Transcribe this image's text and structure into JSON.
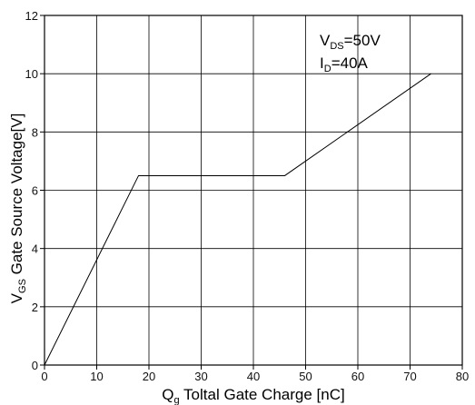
{
  "chart_data": {
    "type": "line",
    "xlabel": {
      "main": "Q",
      "sub": "g",
      "rest": " Toltal Gate Charge [nC]"
    },
    "ylabel": {
      "main": "V",
      "sub": "GS",
      "rest": " Gate Source Voltage[V]"
    },
    "xlim": [
      0,
      80
    ],
    "ylim": [
      0,
      12
    ],
    "x_ticks": [
      0,
      10,
      20,
      30,
      40,
      50,
      60,
      70,
      80
    ],
    "y_ticks": [
      0,
      2,
      4,
      6,
      8,
      10,
      12
    ],
    "grid": true,
    "annotations": [
      {
        "main": "V",
        "sub": "DS",
        "rest": "=50V"
      },
      {
        "main": "I",
        "sub": "D",
        "rest": "=40A"
      }
    ],
    "series": [
      {
        "points": [
          [
            0,
            0
          ],
          [
            18,
            6.5
          ],
          [
            46,
            6.5
          ],
          [
            74,
            10
          ]
        ]
      }
    ]
  }
}
